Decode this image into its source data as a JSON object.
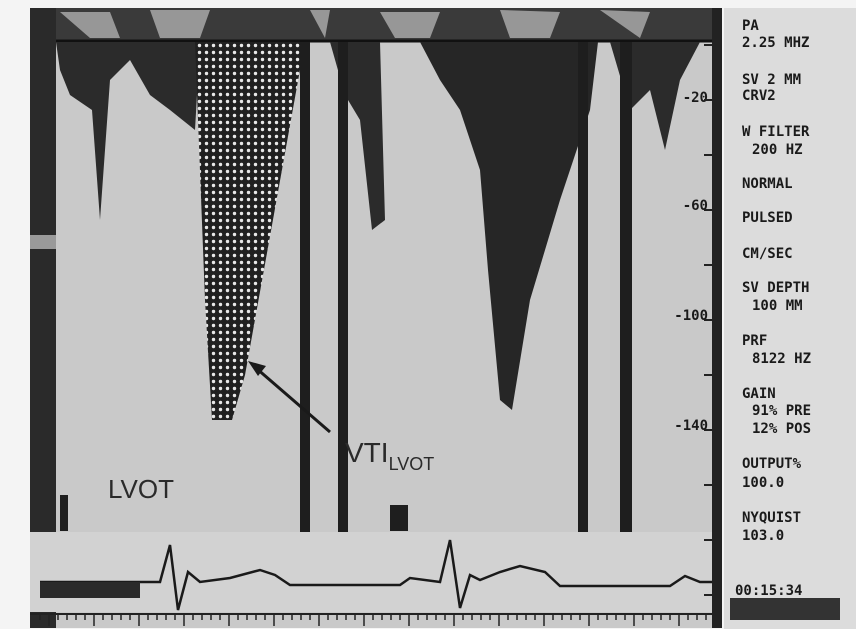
{
  "scale_labels": [
    "-20",
    "-60",
    "-100",
    "-140"
  ],
  "panel": [
    "PA",
    "2.25 MHZ",
    "SV 2 MM",
    "CRV2",
    "W FILTER",
    "200 HZ",
    "NORMAL",
    "PULSED",
    "CM/SEC",
    "SV DEPTH",
    "100 MM",
    "PRF",
    "8122 HZ",
    "GAIN",
    "91% PRE",
    "12% POS",
    "OUTPUT%",
    "100.0",
    "NYQUIST",
    "103.0"
  ],
  "clock": "00:15:34",
  "annotations": {
    "region": "LVOT",
    "vti": "VTI",
    "vti_subscript": "LVOT"
  }
}
